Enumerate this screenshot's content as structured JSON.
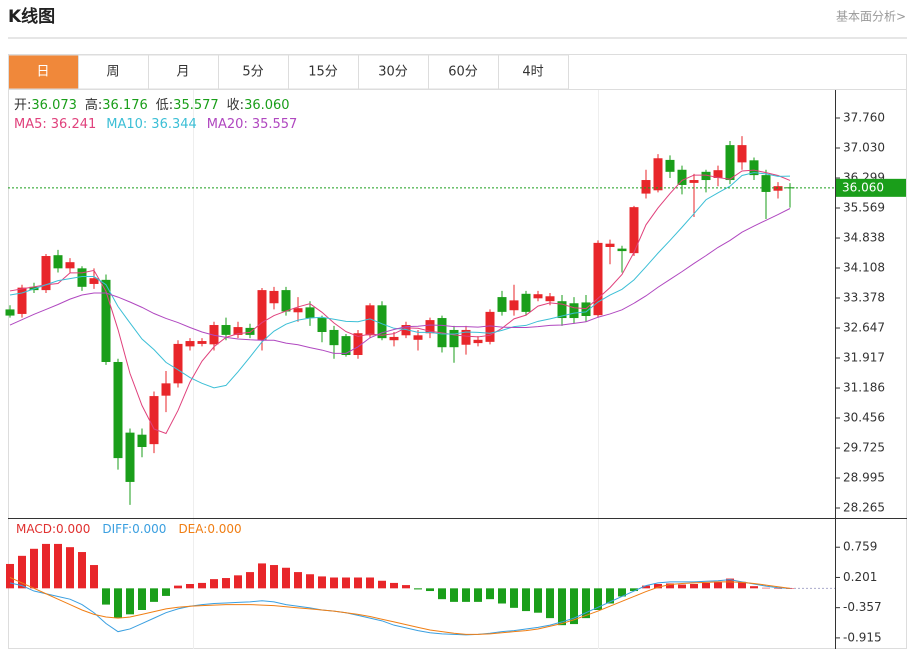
{
  "header": {
    "title": "K线图",
    "link": "基本面分析>"
  },
  "tabs": [
    "日",
    "周",
    "月",
    "5分",
    "15分",
    "30分",
    "60分",
    "4时"
  ],
  "active_tab": 0,
  "chart_data": {
    "type": "candlestick",
    "info": [
      {
        "label": "开:",
        "value": "36.073"
      },
      {
        "label": "高:",
        "value": "36.176"
      },
      {
        "label": "低:",
        "value": "35.577"
      },
      {
        "label": "收:",
        "value": "36.060"
      }
    ],
    "up_color": "#e8262a",
    "down_color": "#1a9e1a",
    "ylim": [
      28.046,
      38.442
    ],
    "yticks": [
      {
        "value": 37.76,
        "label": "37.760"
      },
      {
        "value": 37.03,
        "label": "37.030"
      },
      {
        "value": 36.299,
        "label": "36.299"
      },
      {
        "value": 35.569,
        "label": "35.569"
      },
      {
        "value": 34.838,
        "label": "34.838"
      },
      {
        "value": 34.108,
        "label": "34.108"
      },
      {
        "value": 33.378,
        "label": "33.378"
      },
      {
        "value": 32.647,
        "label": "32.647"
      },
      {
        "value": 31.917,
        "label": "31.917"
      },
      {
        "value": 31.186,
        "label": "31.186"
      },
      {
        "value": 30.456,
        "label": "30.456"
      },
      {
        "value": 29.725,
        "label": "29.725"
      },
      {
        "value": 28.995,
        "label": "28.995"
      },
      {
        "value": 28.265,
        "label": "28.265"
      }
    ],
    "last_price": {
      "value": 36.06,
      "label": "36.060",
      "color": "#1a9e1a"
    },
    "open": [
      33.1,
      32.99,
      33.65,
      33.57,
      34.42,
      34.1,
      34.1,
      33.72,
      33.82,
      31.82,
      30.1,
      30.05,
      29.82,
      31.0,
      31.3,
      32.2,
      32.26,
      32.25,
      32.72,
      32.48,
      32.65,
      32.35,
      33.25,
      33.57,
      33.03,
      33.15,
      32.89,
      32.6,
      32.45,
      31.99,
      32.47,
      33.2,
      32.35,
      32.47,
      32.36,
      32.52,
      32.89,
      32.6,
      32.24,
      32.28,
      32.31,
      33.4,
      33.08,
      33.48,
      33.37,
      33.3,
      33.3,
      33.25,
      33.27,
      32.96,
      34.62,
      34.58,
      34.47,
      35.92,
      36.0,
      36.74,
      36.5,
      36.18,
      36.45,
      36.3,
      37.1,
      36.68,
      36.73,
      36.37,
      35.99,
      36.073
    ],
    "high": [
      33.2,
      33.7,
      33.75,
      34.45,
      34.55,
      34.35,
      34.15,
      34.1,
      33.95,
      31.9,
      30.2,
      30.2,
      31.1,
      31.6,
      32.35,
      32.4,
      32.4,
      32.8,
      32.9,
      32.8,
      32.75,
      33.62,
      33.65,
      33.65,
      33.4,
      33.3,
      32.95,
      32.7,
      32.5,
      32.6,
      33.25,
      33.3,
      32.55,
      32.8,
      32.6,
      32.9,
      32.95,
      32.7,
      32.7,
      32.45,
      33.1,
      33.55,
      33.7,
      33.55,
      33.55,
      33.5,
      33.45,
      33.4,
      33.45,
      34.78,
      34.8,
      34.65,
      35.62,
      36.5,
      36.88,
      36.85,
      36.6,
      36.4,
      36.5,
      36.6,
      37.2,
      37.32,
      36.8,
      36.5,
      36.2,
      36.176
    ],
    "low": [
      32.9,
      32.9,
      33.5,
      33.5,
      34.0,
      34.0,
      33.55,
      33.6,
      31.75,
      29.2,
      28.34,
      29.5,
      29.6,
      30.6,
      31.2,
      32.1,
      32.2,
      32.1,
      32.35,
      32.4,
      32.4,
      32.1,
      33.1,
      32.95,
      32.8,
      32.7,
      32.3,
      31.9,
      31.95,
      31.9,
      32.4,
      32.35,
      32.2,
      32.4,
      32.1,
      32.4,
      32.05,
      31.8,
      32.0,
      32.2,
      32.25,
      32.95,
      32.95,
      32.95,
      33.3,
      33.2,
      32.7,
      32.75,
      32.8,
      32.9,
      34.2,
      34.0,
      34.4,
      35.8,
      35.95,
      36.3,
      35.9,
      35.35,
      35.95,
      36.1,
      36.15,
      36.5,
      36.25,
      35.3,
      35.8,
      35.577
    ],
    "close": [
      32.95,
      33.63,
      33.57,
      34.4,
      34.1,
      34.25,
      33.65,
      33.86,
      31.82,
      29.48,
      28.9,
      29.75,
      30.99,
      31.3,
      32.26,
      32.33,
      32.33,
      32.72,
      32.48,
      32.67,
      32.48,
      33.57,
      33.55,
      33.05,
      33.13,
      32.89,
      32.55,
      32.23,
      31.99,
      32.52,
      33.2,
      32.4,
      32.43,
      32.72,
      32.47,
      32.84,
      32.18,
      32.18,
      32.6,
      32.36,
      33.04,
      33.04,
      33.32,
      33.04,
      33.47,
      33.42,
      32.89,
      32.89,
      32.94,
      34.72,
      34.7,
      34.52,
      35.59,
      36.25,
      36.78,
      36.45,
      36.13,
      36.25,
      36.25,
      36.49,
      36.25,
      37.1,
      36.37,
      35.96,
      36.1,
      36.06
    ],
    "series": [
      {
        "name": "MA5:",
        "value_label": "36.241",
        "color": "#e0417c",
        "values": [
          33.55,
          33.6,
          33.65,
          33.7,
          33.73,
          33.99,
          33.99,
          34.05,
          33.54,
          32.61,
          31.54,
          30.76,
          30.19,
          30.08,
          30.64,
          31.33,
          31.84,
          32.19,
          32.42,
          32.51,
          32.54,
          32.78,
          32.95,
          33.06,
          33.16,
          33.24,
          33.03,
          32.77,
          32.56,
          32.44,
          32.5,
          32.47,
          32.51,
          32.65,
          32.64,
          32.57,
          32.53,
          32.48,
          32.45,
          32.43,
          32.47,
          32.64,
          32.87,
          32.96,
          33.18,
          33.26,
          33.23,
          33.14,
          33.12,
          33.37,
          33.63,
          33.95,
          34.49,
          35.16,
          35.57,
          35.92,
          36.24,
          36.37,
          36.37,
          36.31,
          36.27,
          36.47,
          36.49,
          36.43,
          36.36,
          36.241
        ]
      },
      {
        "name": "MA10:",
        "value_label": "36.344",
        "color": "#3cbfd6",
        "values": [
          33.45,
          33.5,
          33.6,
          33.7,
          33.8,
          33.85,
          33.9,
          33.9,
          33.7,
          33.17,
          32.77,
          32.38,
          32.12,
          31.81,
          31.63,
          31.44,
          31.3,
          31.19,
          31.25,
          31.58,
          31.94,
          32.31,
          32.57,
          32.74,
          32.84,
          32.89,
          32.91,
          32.86,
          32.81,
          32.8,
          32.87,
          32.75,
          32.64,
          32.61,
          32.54,
          32.54,
          32.5,
          32.5,
          32.55,
          32.54,
          32.52,
          32.59,
          32.68,
          32.71,
          32.81,
          32.87,
          32.94,
          33.01,
          33.04,
          33.28,
          33.45,
          33.59,
          33.82,
          34.14,
          34.47,
          34.78,
          35.1,
          35.43,
          35.77,
          35.94,
          36.1,
          36.36,
          36.43,
          36.4,
          36.34,
          36.344
        ]
      },
      {
        "name": "MA20:",
        "value_label": "35.557",
        "color": "#b048c0",
        "values": [
          32.72,
          32.85,
          32.98,
          33.1,
          33.22,
          33.35,
          33.45,
          33.5,
          33.5,
          33.4,
          33.28,
          33.15,
          33.0,
          32.88,
          32.78,
          32.66,
          32.55,
          32.47,
          32.42,
          32.38,
          32.36,
          32.35,
          32.35,
          32.28,
          32.24,
          32.17,
          32.11,
          32.03,
          32.03,
          32.19,
          32.41,
          32.53,
          32.61,
          32.68,
          32.69,
          32.72,
          32.71,
          32.68,
          32.68,
          32.67,
          32.7,
          32.67,
          32.66,
          32.66,
          32.68,
          32.71,
          32.72,
          32.76,
          32.8,
          32.91,
          32.99,
          33.09,
          33.25,
          33.43,
          33.64,
          33.83,
          34.02,
          34.22,
          34.41,
          34.61,
          34.78,
          34.98,
          35.13,
          35.27,
          35.41,
          35.557
        ]
      }
    ],
    "macd": {
      "ylim": [
        -1.12,
        1.28
      ],
      "yticks": [
        0.759,
        0.201,
        -0.357,
        -0.915
      ],
      "labels": [
        {
          "name": "MACD:",
          "value": "0.000",
          "color": "#e0302f"
        },
        {
          "name": "DIFF:",
          "value": "0.000",
          "color": "#3a9fe0"
        },
        {
          "name": "DEA:",
          "value": "0.000",
          "color": "#f07e14"
        }
      ],
      "hist": [
        0.45,
        0.6,
        0.73,
        0.82,
        0.82,
        0.76,
        0.67,
        0.43,
        -0.3,
        -0.54,
        -0.48,
        -0.4,
        -0.25,
        -0.14,
        0.05,
        0.08,
        0.1,
        0.17,
        0.19,
        0.24,
        0.3,
        0.46,
        0.43,
        0.38,
        0.3,
        0.26,
        0.22,
        0.2,
        0.2,
        0.2,
        0.2,
        0.14,
        0.1,
        0.06,
        -0.02,
        -0.05,
        -0.2,
        -0.25,
        -0.25,
        -0.25,
        -0.2,
        -0.28,
        -0.36,
        -0.42,
        -0.45,
        -0.55,
        -0.68,
        -0.66,
        -0.55,
        -0.4,
        -0.28,
        -0.15,
        -0.05,
        0.05,
        0.08,
        0.09,
        0.07,
        0.08,
        0.1,
        0.12,
        0.18,
        0.12,
        0.04,
        0.01,
        0.0,
        0.0
      ],
      "diff": [
        0.1,
        0.05,
        -0.05,
        -0.1,
        -0.15,
        -0.2,
        -0.3,
        -0.45,
        -0.65,
        -0.8,
        -0.75,
        -0.65,
        -0.55,
        -0.45,
        -0.38,
        -0.33,
        -0.3,
        -0.28,
        -0.27,
        -0.26,
        -0.25,
        -0.23,
        -0.25,
        -0.3,
        -0.33,
        -0.36,
        -0.4,
        -0.42,
        -0.45,
        -0.5,
        -0.55,
        -0.6,
        -0.68,
        -0.73,
        -0.78,
        -0.82,
        -0.84,
        -0.85,
        -0.86,
        -0.85,
        -0.83,
        -0.8,
        -0.78,
        -0.75,
        -0.72,
        -0.68,
        -0.62,
        -0.55,
        -0.45,
        -0.35,
        -0.25,
        -0.15,
        -0.05,
        0.05,
        0.1,
        0.12,
        0.12,
        0.12,
        0.13,
        0.14,
        0.16,
        0.12,
        0.08,
        0.04,
        0.01,
        0.0
      ],
      "dea": [
        0.2,
        0.1,
        0.0,
        -0.1,
        -0.2,
        -0.3,
        -0.4,
        -0.48,
        -0.53,
        -0.55,
        -0.53,
        -0.48,
        -0.43,
        -0.38,
        -0.35,
        -0.33,
        -0.32,
        -0.31,
        -0.3,
        -0.3,
        -0.3,
        -0.31,
        -0.32,
        -0.34,
        -0.36,
        -0.38,
        -0.4,
        -0.42,
        -0.45,
        -0.48,
        -0.52,
        -0.57,
        -0.62,
        -0.67,
        -0.72,
        -0.77,
        -0.8,
        -0.83,
        -0.85,
        -0.85,
        -0.84,
        -0.82,
        -0.8,
        -0.78,
        -0.75,
        -0.7,
        -0.65,
        -0.58,
        -0.5,
        -0.42,
        -0.33,
        -0.24,
        -0.15,
        -0.06,
        0.02,
        0.07,
        0.09,
        0.1,
        0.11,
        0.12,
        0.12,
        0.11,
        0.09,
        0.06,
        0.03,
        0.0
      ]
    }
  }
}
